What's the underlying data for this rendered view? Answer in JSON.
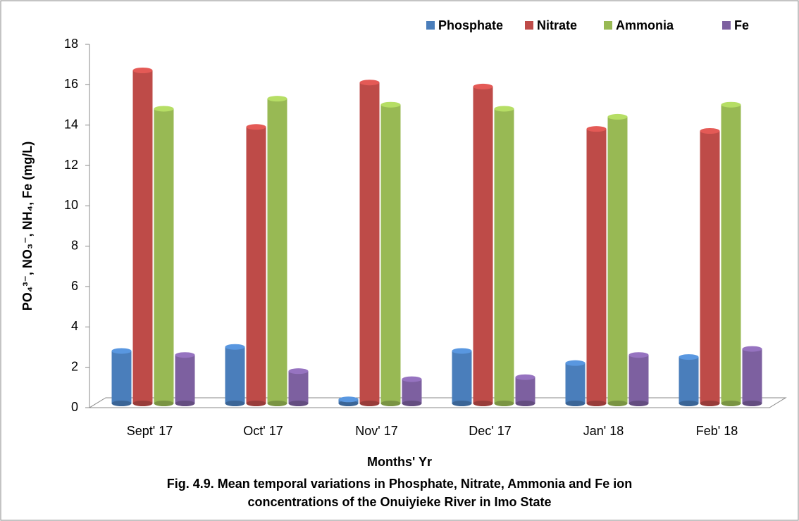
{
  "chart_data": {
    "type": "bar",
    "caption": [
      "Fig. 4.9. Mean temporal variations in Phosphate, Nitrate, Ammonia and Fe ion",
      "concentrations of the Onuiyieke River in Imo State"
    ],
    "x_label": "Months' Yr",
    "y_label": "PO₄³⁻, NO₃⁻, NH₄, Fe (mg/L)",
    "categories": [
      "Sept' 17",
      "Oct' 17",
      "Nov' 17",
      "Dec' 17",
      "Jan' 18",
      "Feb' 18"
    ],
    "series": [
      {
        "name": "Phosphate",
        "color": "#4a7ebb",
        "values": [
          2.6,
          2.8,
          0.2,
          2.6,
          2.0,
          2.3
        ]
      },
      {
        "name": "Nitrate",
        "color": "#be4b48",
        "values": [
          16.5,
          13.7,
          15.9,
          15.7,
          13.6,
          13.5
        ]
      },
      {
        "name": "Ammonia",
        "color": "#98b954",
        "values": [
          14.6,
          15.1,
          14.8,
          14.6,
          14.2,
          14.8
        ]
      },
      {
        "name": "Fe",
        "color": "#7d60a0",
        "values": [
          2.4,
          1.6,
          1.2,
          1.3,
          2.4,
          2.7
        ]
      }
    ],
    "ylim": [
      0,
      18
    ],
    "yticks": [
      0,
      2,
      4,
      6,
      8,
      10,
      12,
      14,
      16,
      18
    ],
    "legend": "top-right"
  }
}
